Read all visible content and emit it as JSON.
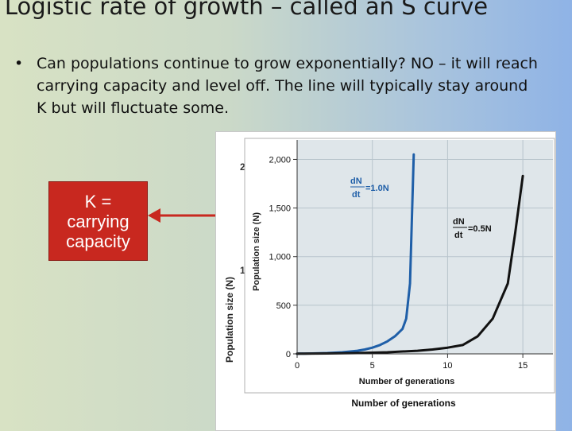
{
  "slide": {
    "title": "Logistic rate of growth – called an S curve",
    "bullet": "Can populations continue to grow exponentially? NO – it will reach carrying capacity and level off.  The line will typically stay around K but will fluctuate some."
  },
  "callout": {
    "line1": "K =",
    "line2": "carrying",
    "line3": "capacity",
    "color": "#c8281f"
  },
  "chart_data": {
    "type": "line",
    "xlabel": "Number of generations",
    "ylabel": "Population size (N)",
    "back_ylabel": "Population size (N)",
    "back_xlabel": "Number of generations",
    "xlim": [
      0,
      17
    ],
    "ylim": [
      0,
      2200
    ],
    "xticks": [
      0,
      5,
      10,
      15
    ],
    "yticks": [
      0,
      500,
      1000,
      1500,
      2000
    ],
    "yticklabels": [
      "0",
      "500",
      "1,000",
      "1,500",
      "2,000"
    ],
    "grid": true,
    "series": [
      {
        "name": "dN/dt = 1.0N",
        "color": "#1f5fa8",
        "label_numerator": "dN",
        "label_denominator": "dt",
        "label_rhs": "=1.0N",
        "x": [
          0,
          1,
          2,
          3,
          4,
          4.5,
          5,
          5.5,
          6,
          6.5,
          7,
          7.25,
          7.5,
          7.75
        ],
        "y": [
          2,
          4,
          8,
          16,
          32,
          45,
          64,
          91,
          128,
          181,
          256,
          362,
          724,
          2050
        ]
      },
      {
        "name": "dN/dt = 0.5N",
        "color": "#111111",
        "label_numerator": "dN",
        "label_denominator": "dt",
        "label_rhs": "=0.5N",
        "x": [
          0,
          2,
          4,
          6,
          8,
          9,
          10,
          11,
          12,
          13,
          14,
          14.5,
          15
        ],
        "y": [
          2,
          4,
          8,
          16,
          32,
          45,
          64,
          91,
          181,
          362,
          724,
          1250,
          1830
        ]
      }
    ],
    "back_peeks": {
      "top_tick": "2",
      "mid_tick": "1"
    }
  }
}
